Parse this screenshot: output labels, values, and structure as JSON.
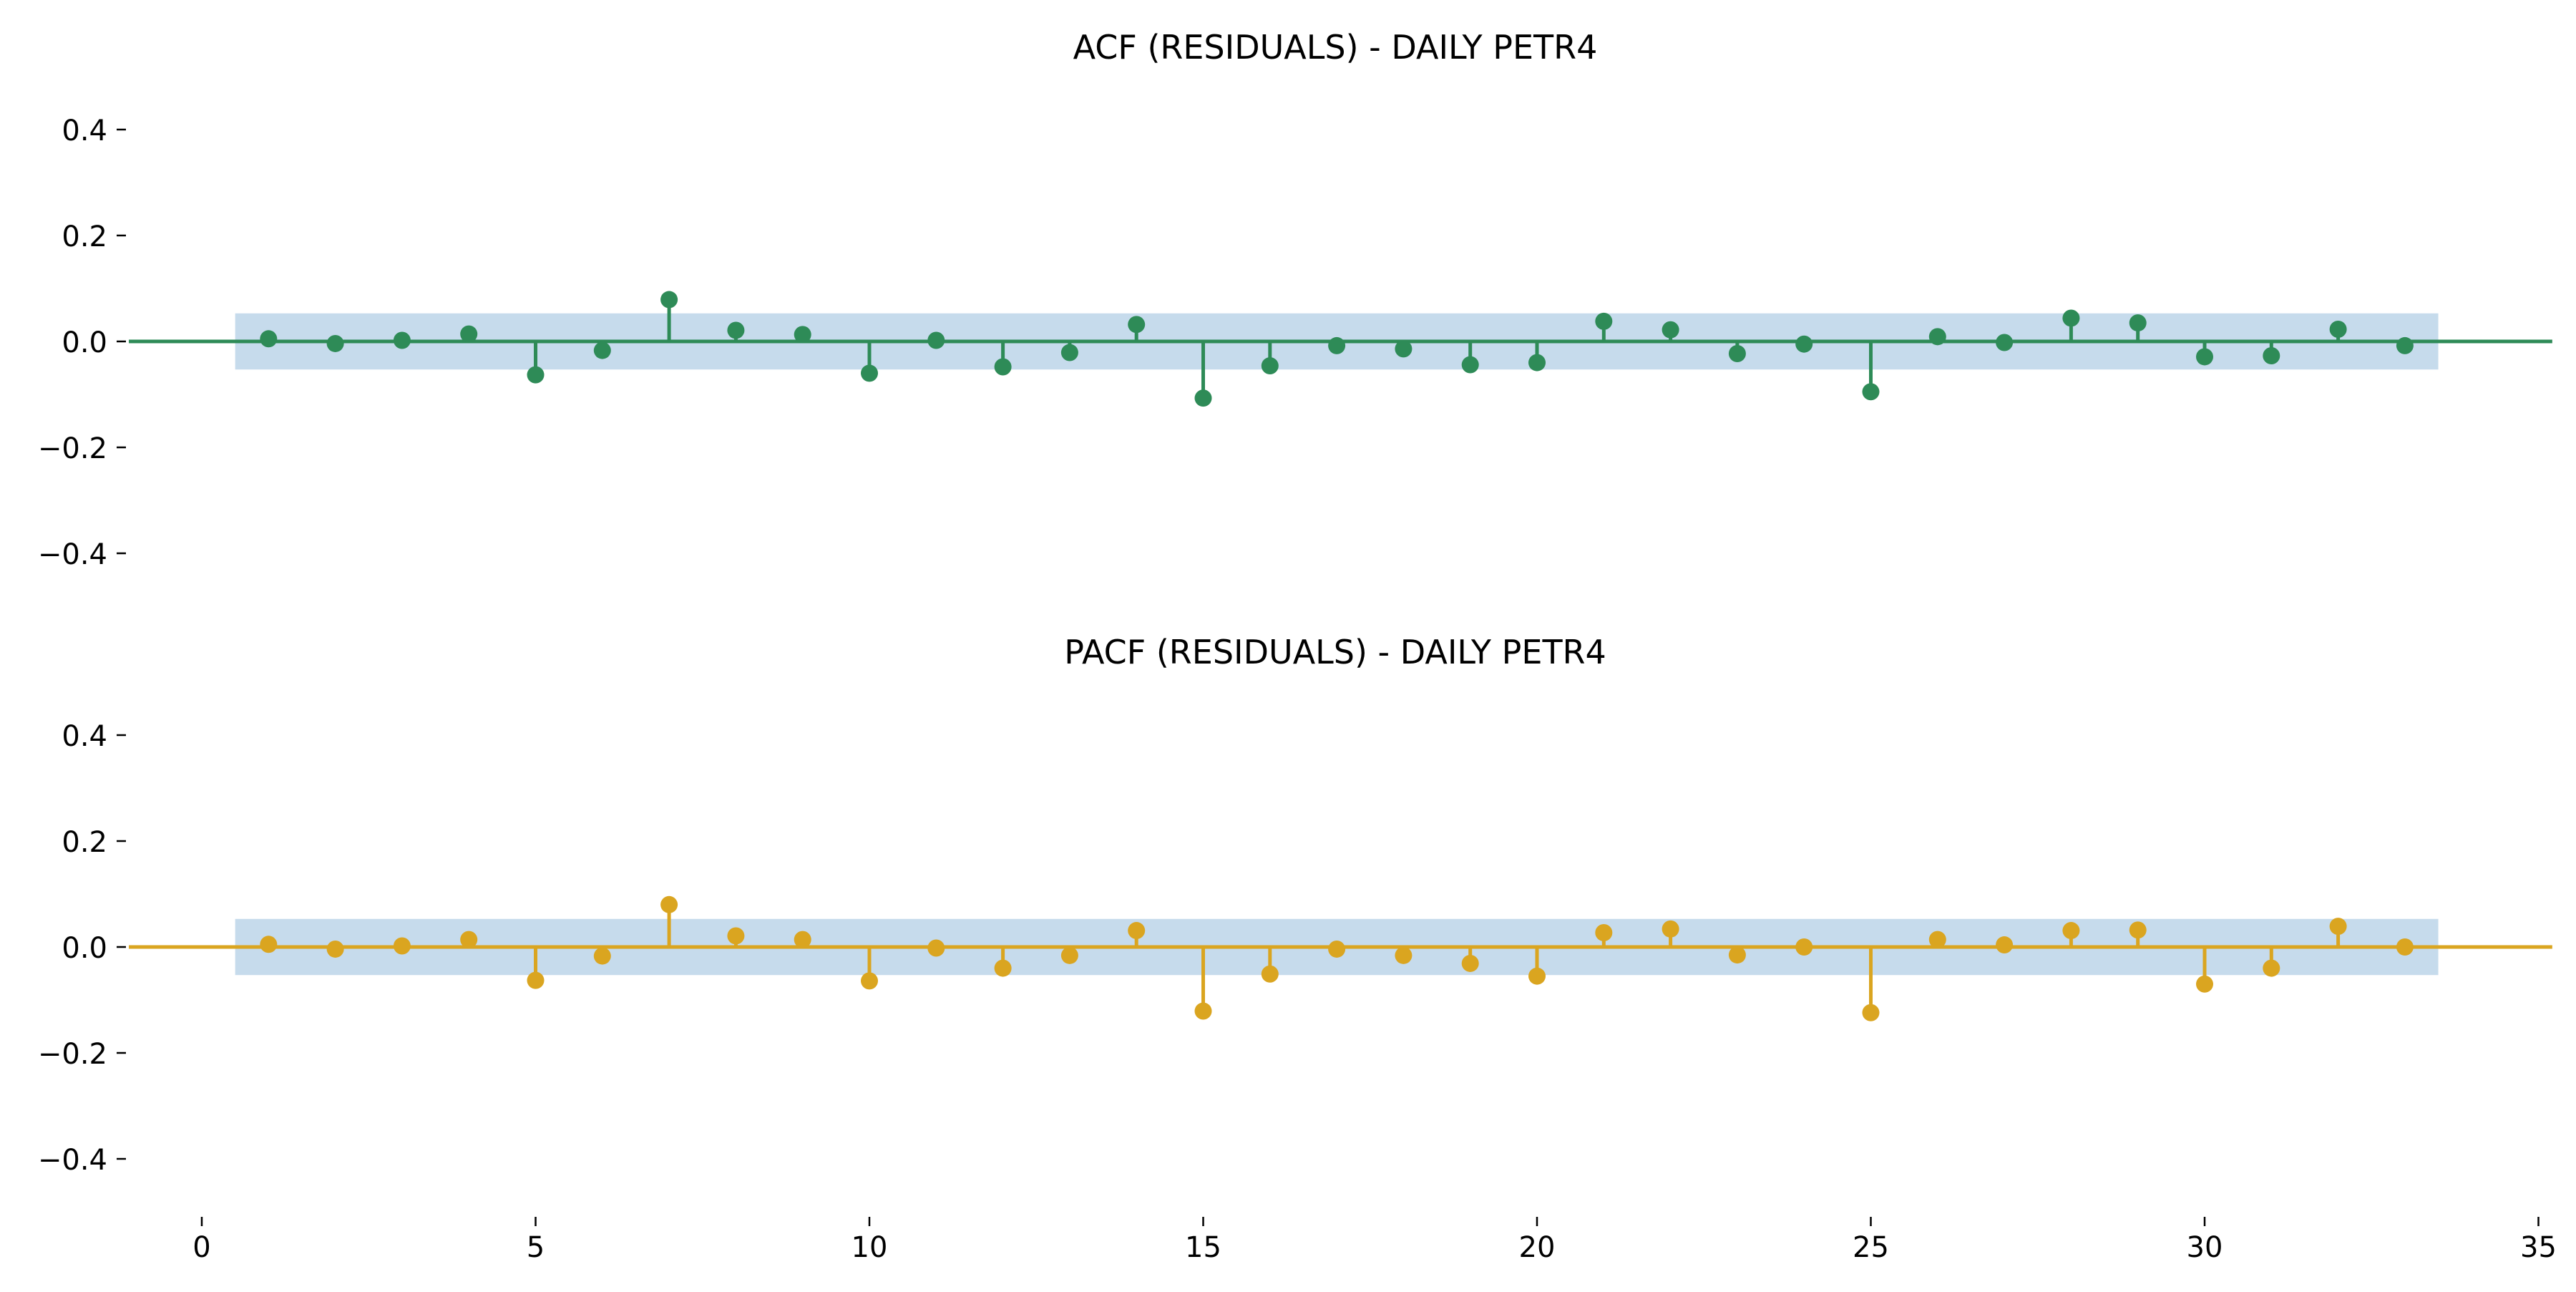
{
  "chart_data": [
    {
      "type": "stem",
      "title": "ACF (RESIDUALS) - DAILY PETR4",
      "xlabel": "",
      "ylabel": "",
      "xlim": [
        -1.2,
        35.1
      ],
      "ylim": [
        -0.45,
        0.45
      ],
      "yticks": [
        0.4,
        0.2,
        0.0,
        -0.2,
        -0.4
      ],
      "ytick_labels": [
        "0.4",
        "0.2",
        "0.0",
        "−0.2",
        "−0.4"
      ],
      "grid": false,
      "color": "#2e8b57",
      "confidence_band": {
        "x_from": 0.5,
        "x_to": 33.5,
        "lower": -0.053,
        "upper": 0.053,
        "color": "#c6dbec"
      },
      "lags": [
        1,
        2,
        3,
        4,
        5,
        6,
        7,
        8,
        9,
        10,
        11,
        12,
        13,
        14,
        15,
        16,
        17,
        18,
        19,
        20,
        21,
        22,
        23,
        24,
        25,
        26,
        27,
        28,
        29,
        30,
        31,
        32,
        33
      ],
      "values": [
        0.005,
        -0.004,
        0.002,
        0.014,
        -0.063,
        -0.017,
        0.079,
        0.021,
        0.013,
        -0.06,
        0.002,
        -0.048,
        -0.021,
        0.032,
        -0.107,
        -0.046,
        -0.008,
        -0.014,
        -0.044,
        -0.04,
        0.038,
        0.022,
        -0.023,
        -0.005,
        -0.095,
        0.009,
        -0.002,
        0.044,
        0.035,
        -0.029,
        -0.027,
        0.023,
        -0.008
      ]
    },
    {
      "type": "stem",
      "title": "PACF (RESIDUALS) - DAILY PETR4",
      "xlabel": "",
      "ylabel": "",
      "xlim": [
        -1.2,
        35.1
      ],
      "ylim": [
        -0.45,
        0.45
      ],
      "xticks": [
        0,
        5,
        10,
        15,
        20,
        25,
        30,
        35
      ],
      "yticks": [
        0.4,
        0.2,
        0.0,
        -0.2,
        -0.4
      ],
      "ytick_labels": [
        "0.4",
        "0.2",
        "0.0",
        "−0.2",
        "−0.4"
      ],
      "grid": false,
      "color": "#daa520",
      "confidence_band": {
        "x_from": 0.5,
        "x_to": 33.5,
        "lower": -0.053,
        "upper": 0.053,
        "color": "#c6dbec"
      },
      "lags": [
        1,
        2,
        3,
        4,
        5,
        6,
        7,
        8,
        9,
        10,
        11,
        12,
        13,
        14,
        15,
        16,
        17,
        18,
        19,
        20,
        21,
        22,
        23,
        24,
        25,
        26,
        27,
        28,
        29,
        30,
        31,
        32,
        33
      ],
      "values": [
        0.005,
        -0.004,
        0.002,
        0.014,
        -0.063,
        -0.017,
        0.08,
        0.021,
        0.014,
        -0.064,
        -0.002,
        -0.04,
        -0.016,
        0.031,
        -0.121,
        -0.051,
        -0.004,
        -0.016,
        -0.031,
        -0.055,
        0.027,
        0.034,
        -0.015,
        0.0,
        -0.124,
        0.014,
        0.004,
        0.031,
        0.032,
        -0.07,
        -0.04,
        0.039,
        0.0
      ]
    }
  ]
}
